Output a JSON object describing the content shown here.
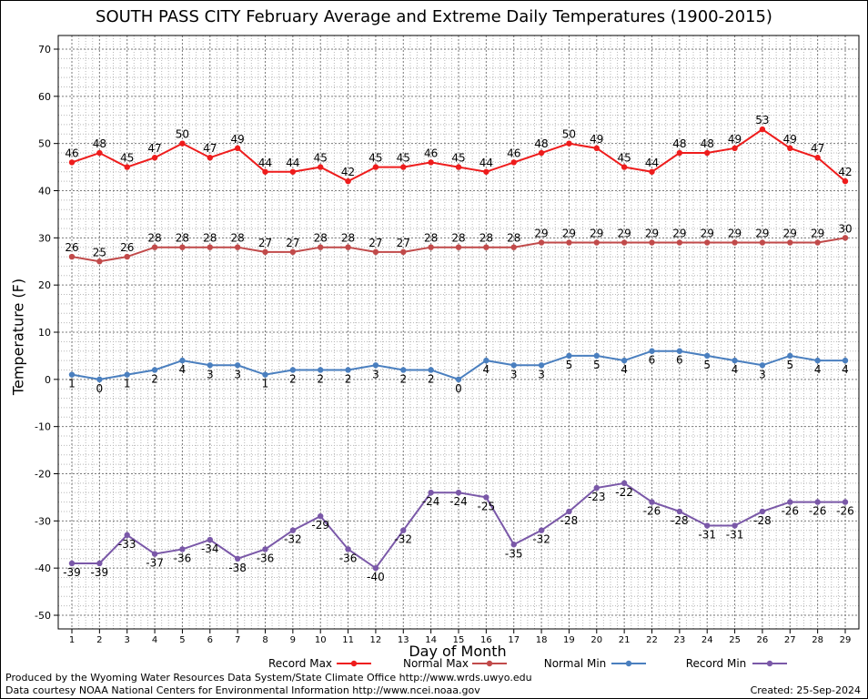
{
  "created": "Created: 25-Sep-2024",
  "credits": [
    "Produced by the Wyoming Water Resources Data System/State Climate Office http://www.wrds.uwyo.edu",
    "Data courtesy NOAA National Centers for Environmental Information http://www.ncei.noaa.gov"
  ],
  "chart_data": {
    "type": "line",
    "title": "SOUTH PASS CITY February Average and Extreme Daily Temperatures (1900-2015)",
    "xlabel": "Day of Month",
    "ylabel": "Temperature (F)",
    "x": [
      1,
      2,
      3,
      4,
      5,
      6,
      7,
      8,
      9,
      10,
      11,
      12,
      13,
      14,
      15,
      16,
      17,
      18,
      19,
      20,
      21,
      22,
      23,
      24,
      25,
      26,
      27,
      28,
      29
    ],
    "xlim": [
      1,
      29
    ],
    "ylim": [
      -50,
      70
    ],
    "yticks": [
      -50,
      -40,
      -30,
      -20,
      -10,
      0,
      10,
      20,
      30,
      40,
      50,
      60,
      70
    ],
    "grid": true,
    "legend_position": "bottom",
    "series": [
      {
        "name": "Record Max",
        "color": "#ee1c1c",
        "label_position": "above",
        "values": [
          46,
          48,
          45,
          47,
          50,
          47,
          49,
          44,
          44,
          45,
          42,
          45,
          45,
          46,
          45,
          44,
          46,
          48,
          50,
          49,
          45,
          44,
          48,
          48,
          49,
          53,
          49,
          47,
          42
        ]
      },
      {
        "name": "Normal Max",
        "color": "#c14a4a",
        "label_position": "above",
        "values": [
          26,
          25,
          26,
          28,
          28,
          28,
          28,
          27,
          27,
          28,
          28,
          27,
          27,
          28,
          28,
          28,
          28,
          29,
          29,
          29,
          29,
          29,
          29,
          29,
          29,
          29,
          29,
          29,
          30
        ]
      },
      {
        "name": "Normal Min",
        "color": "#4a7fbf",
        "label_position": "below",
        "values": [
          1,
          0,
          1,
          2,
          4,
          3,
          3,
          1,
          2,
          2,
          2,
          3,
          2,
          2,
          0,
          4,
          3,
          3,
          5,
          5,
          4,
          6,
          6,
          5,
          4,
          3,
          5,
          4,
          4
        ]
      },
      {
        "name": "Record Min",
        "color": "#7a58a8",
        "label_position": "below",
        "values": [
          -39,
          -39,
          -33,
          -37,
          -36,
          -34,
          -38,
          -36,
          -32,
          -29,
          -36,
          -40,
          -32,
          -24,
          -24,
          -25,
          -35,
          -32,
          -28,
          -23,
          -22,
          -26,
          -28,
          -31,
          -31,
          -28,
          -26,
          -26,
          -26
        ]
      }
    ]
  }
}
